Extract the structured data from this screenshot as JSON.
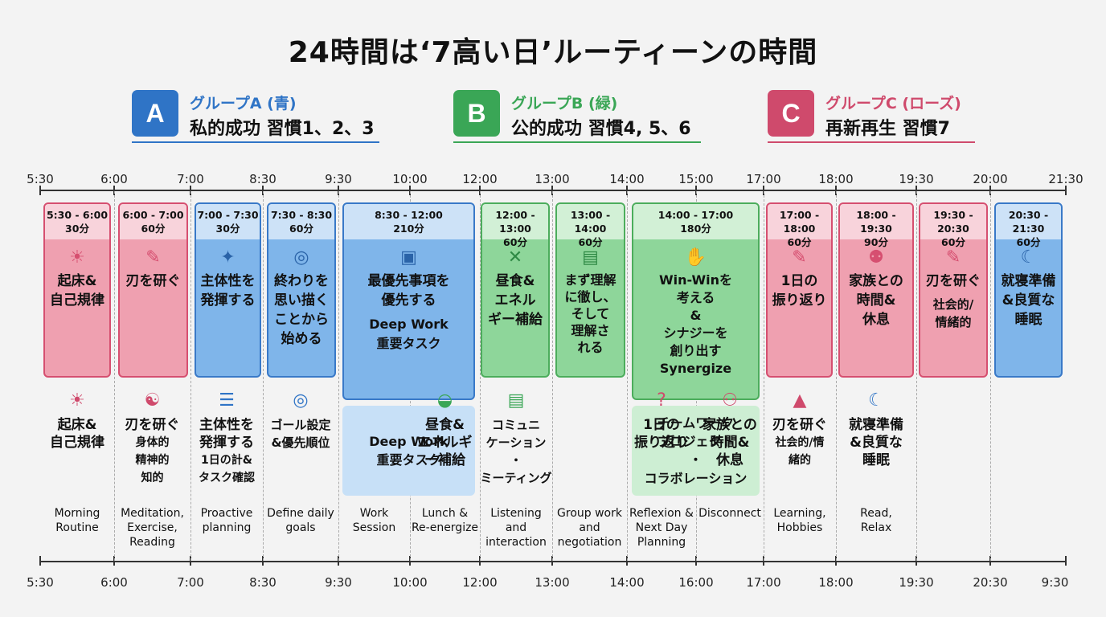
{
  "title": "24時間は‘7高い日’ルーティーンの時間",
  "groups": [
    {
      "badge": "A",
      "name": "グループA (青)",
      "desc": "私的成功 習慣1、2、3",
      "color": "#2f74c6"
    },
    {
      "badge": "B",
      "name": "グループB (緑)",
      "desc": "公的成功 習慣4, 5、6",
      "color": "#3aa656"
    },
    {
      "badge": "C",
      "name": "グループC (ローズ)",
      "desc": "再新再生 習慣7",
      "color": "#cf4a6c"
    }
  ],
  "times_top": [
    "5:30",
    "6:00",
    "7:00",
    "8:30",
    "9:30",
    "10:00",
    "12:00",
    "13:00",
    "14:00",
    "15:00",
    "17:00",
    "18:00",
    "19:30",
    "20:00",
    "21:30"
  ],
  "times_bottom": [
    "5:30",
    "6:00",
    "7:00",
    "8:30",
    "9:30",
    "10:00",
    "12:00",
    "13:00",
    "14:00",
    "16:00",
    "17:00",
    "18:00",
    "19:30",
    "20:30",
    "9:30"
  ],
  "cards": [
    {
      "range": "5:30 - 6:00",
      "dur": "30分",
      "icon": "sunrise-icon",
      "glyph": "☀",
      "text": "起床&\n自己規律",
      "sub": "",
      "color": "pink"
    },
    {
      "range": "6:00 - 7:00",
      "dur": "60分",
      "icon": "saw-icon",
      "glyph": "✎",
      "text": "刃を研ぐ",
      "sub": "",
      "color": "pink"
    },
    {
      "range": "7:00 - 7:30",
      "dur": "30分",
      "icon": "lightbulb-icon",
      "glyph": "✦",
      "text": "主体性を\n発揮する",
      "sub": "",
      "color": "blue"
    },
    {
      "range": "7:30 - 8:30",
      "dur": "60分",
      "icon": "target-icon",
      "glyph": "◎",
      "text": "終わりを\n思い描く\nことから\n始める",
      "sub": "",
      "color": "blue"
    },
    {
      "range": "8:30 - 12:00",
      "dur": "210分",
      "icon": "briefcase-icon",
      "glyph": "▣",
      "text": "最優先事項を\n優先する",
      "sub": "Deep Work\n重要タスク",
      "color": "blue"
    },
    {
      "range": "12:00 - 13:00",
      "dur": "60分",
      "icon": "utensils-icon",
      "glyph": "✕",
      "text": "昼食&\nエネル\nギー補給",
      "sub": "",
      "color": "green"
    },
    {
      "range": "13:00 - 14:00",
      "dur": "60分",
      "icon": "chat-icon",
      "glyph": "▤",
      "text": "まず理解\nに徹し、\nそして\n理解さ\nれる",
      "sub": "",
      "color": "green"
    },
    {
      "range": "14:00 - 17:00",
      "dur": "180分",
      "icon": "handshake-icon",
      "glyph": "✋",
      "text": "Win-Winを\n考える\n&\nシナジーを\n創り出す\nSynergize",
      "sub": "",
      "color": "green"
    },
    {
      "range": "17:00 - 18:00",
      "dur": "60分",
      "icon": "notepad-icon",
      "glyph": "✎",
      "text": "1日の\n振り返り",
      "sub": "",
      "color": "pink"
    },
    {
      "range": "18:00 - 19:30",
      "dur": "90分",
      "icon": "family-icon",
      "glyph": "⚉",
      "text": "家族との\n時間&\n休息",
      "sub": "",
      "color": "pink"
    },
    {
      "range": "19:30 - 20:30",
      "dur": "60分",
      "icon": "saw-icon",
      "glyph": "✎",
      "text": "刃を研ぐ",
      "sub": "社会的/\n情緒的",
      "color": "pink"
    },
    {
      "range": "20:30 - 21:30",
      "dur": "60分",
      "icon": "sleep-icon",
      "glyph": "☾",
      "text": "就寝準備\n&良質な\n睡眠",
      "sub": "",
      "color": "blue"
    }
  ],
  "lower": [
    {
      "icon": "sunrise-icon",
      "glyph": "☀",
      "text": "起床&\n自己規律",
      "sub": "",
      "eng": "Morning\nRoutine",
      "color": "#cf4a6c"
    },
    {
      "icon": "meditation-icon",
      "glyph": "☯",
      "text": "刃を研ぐ",
      "sub": "身体的\n精神的\n知的",
      "eng": "Meditation,\nExercise,\nReading",
      "color": "#cf4a6c"
    },
    {
      "icon": "checklist-icon",
      "glyph": "☰",
      "text": "主体性を\n発揮する",
      "sub": "1日の計&\nタスク確認",
      "eng": "Proactive\nplanning",
      "color": "#2f74c6"
    },
    {
      "icon": "target-icon",
      "glyph": "◎",
      "text": "ゴール設定\n&優先順位",
      "sub": "",
      "eng": "Define daily\ngoals",
      "color": "#2f74c6"
    },
    {
      "icon": "",
      "glyph": "",
      "text": "Deep Work\n重要タスク",
      "sub": "",
      "eng": "Work Session",
      "color": "#2f74c6"
    },
    {
      "icon": "bowl-icon",
      "glyph": "◒",
      "text": "昼食&\nエネルギ\nー補給",
      "sub": "",
      "eng": "Lunch &\nRe-energize",
      "color": "#3aa656"
    },
    {
      "icon": "meeting-icon",
      "glyph": "▤",
      "text": "コミュニ\nケーション\n・\nミーティング",
      "sub": "",
      "eng": "Listening and\ninteraction",
      "color": "#3aa656"
    },
    {
      "icon": "",
      "glyph": "",
      "text": "チームワーク\nプロジェクト\n・\nコラボレーション",
      "sub": "",
      "eng": "Group work and\nnegotiation",
      "color": "#3aa656"
    },
    {
      "icon": "question-head-icon",
      "glyph": "?",
      "text": "1日の\n振り返り",
      "sub": "",
      "eng": "Reflexion &\nNext Day\nPlanning",
      "color": "#cf4a6c"
    },
    {
      "icon": "people-icon",
      "glyph": "⚇",
      "text": "家族との\n時間&\n休息",
      "sub": "",
      "eng": "Disconnect",
      "color": "#cf4a6c"
    },
    {
      "icon": "graduation-cap-icon",
      "glyph": "▲",
      "text": "刃を研ぐ",
      "sub": "社会的/情\n緒的",
      "eng": "Learning,\nHobbies",
      "color": "#cf4a6c"
    },
    {
      "icon": "sleep-icon",
      "glyph": "☾",
      "text": "就寝準備\n&良質な\n睡眠",
      "sub": "",
      "eng": "Read,\nRelax",
      "color": "#2f74c6"
    }
  ]
}
